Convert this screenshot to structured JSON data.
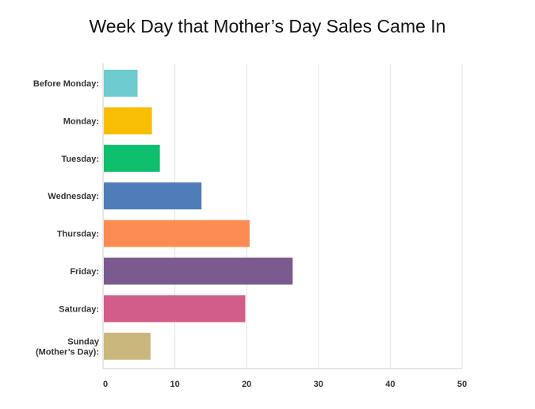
{
  "chart_data": {
    "type": "bar",
    "orientation": "horizontal",
    "title": "Week Day that Mother’s Day Sales Came In",
    "categories": [
      [
        "Before Monday:"
      ],
      [
        "Monday:"
      ],
      [
        "Tuesday:"
      ],
      [
        "Wednesday:"
      ],
      [
        "Thursday:"
      ],
      [
        "Friday:"
      ],
      [
        "Saturday:"
      ],
      [
        "Sunday",
        "(Mother’s Day):"
      ]
    ],
    "values": [
      4.7,
      6.7,
      7.8,
      13.6,
      20.3,
      26.3,
      19.7,
      6.5
    ],
    "colors": [
      "#6ecbcf",
      "#f8be02",
      "#0ebf6d",
      "#4f7db8",
      "#fd8c52",
      "#7b5b8f",
      "#d25d8b",
      "#c9b77c"
    ],
    "xlim": [
      0,
      50
    ],
    "xticks": [
      "0",
      "10",
      "20",
      "30",
      "40",
      "50"
    ],
    "grid": true
  }
}
